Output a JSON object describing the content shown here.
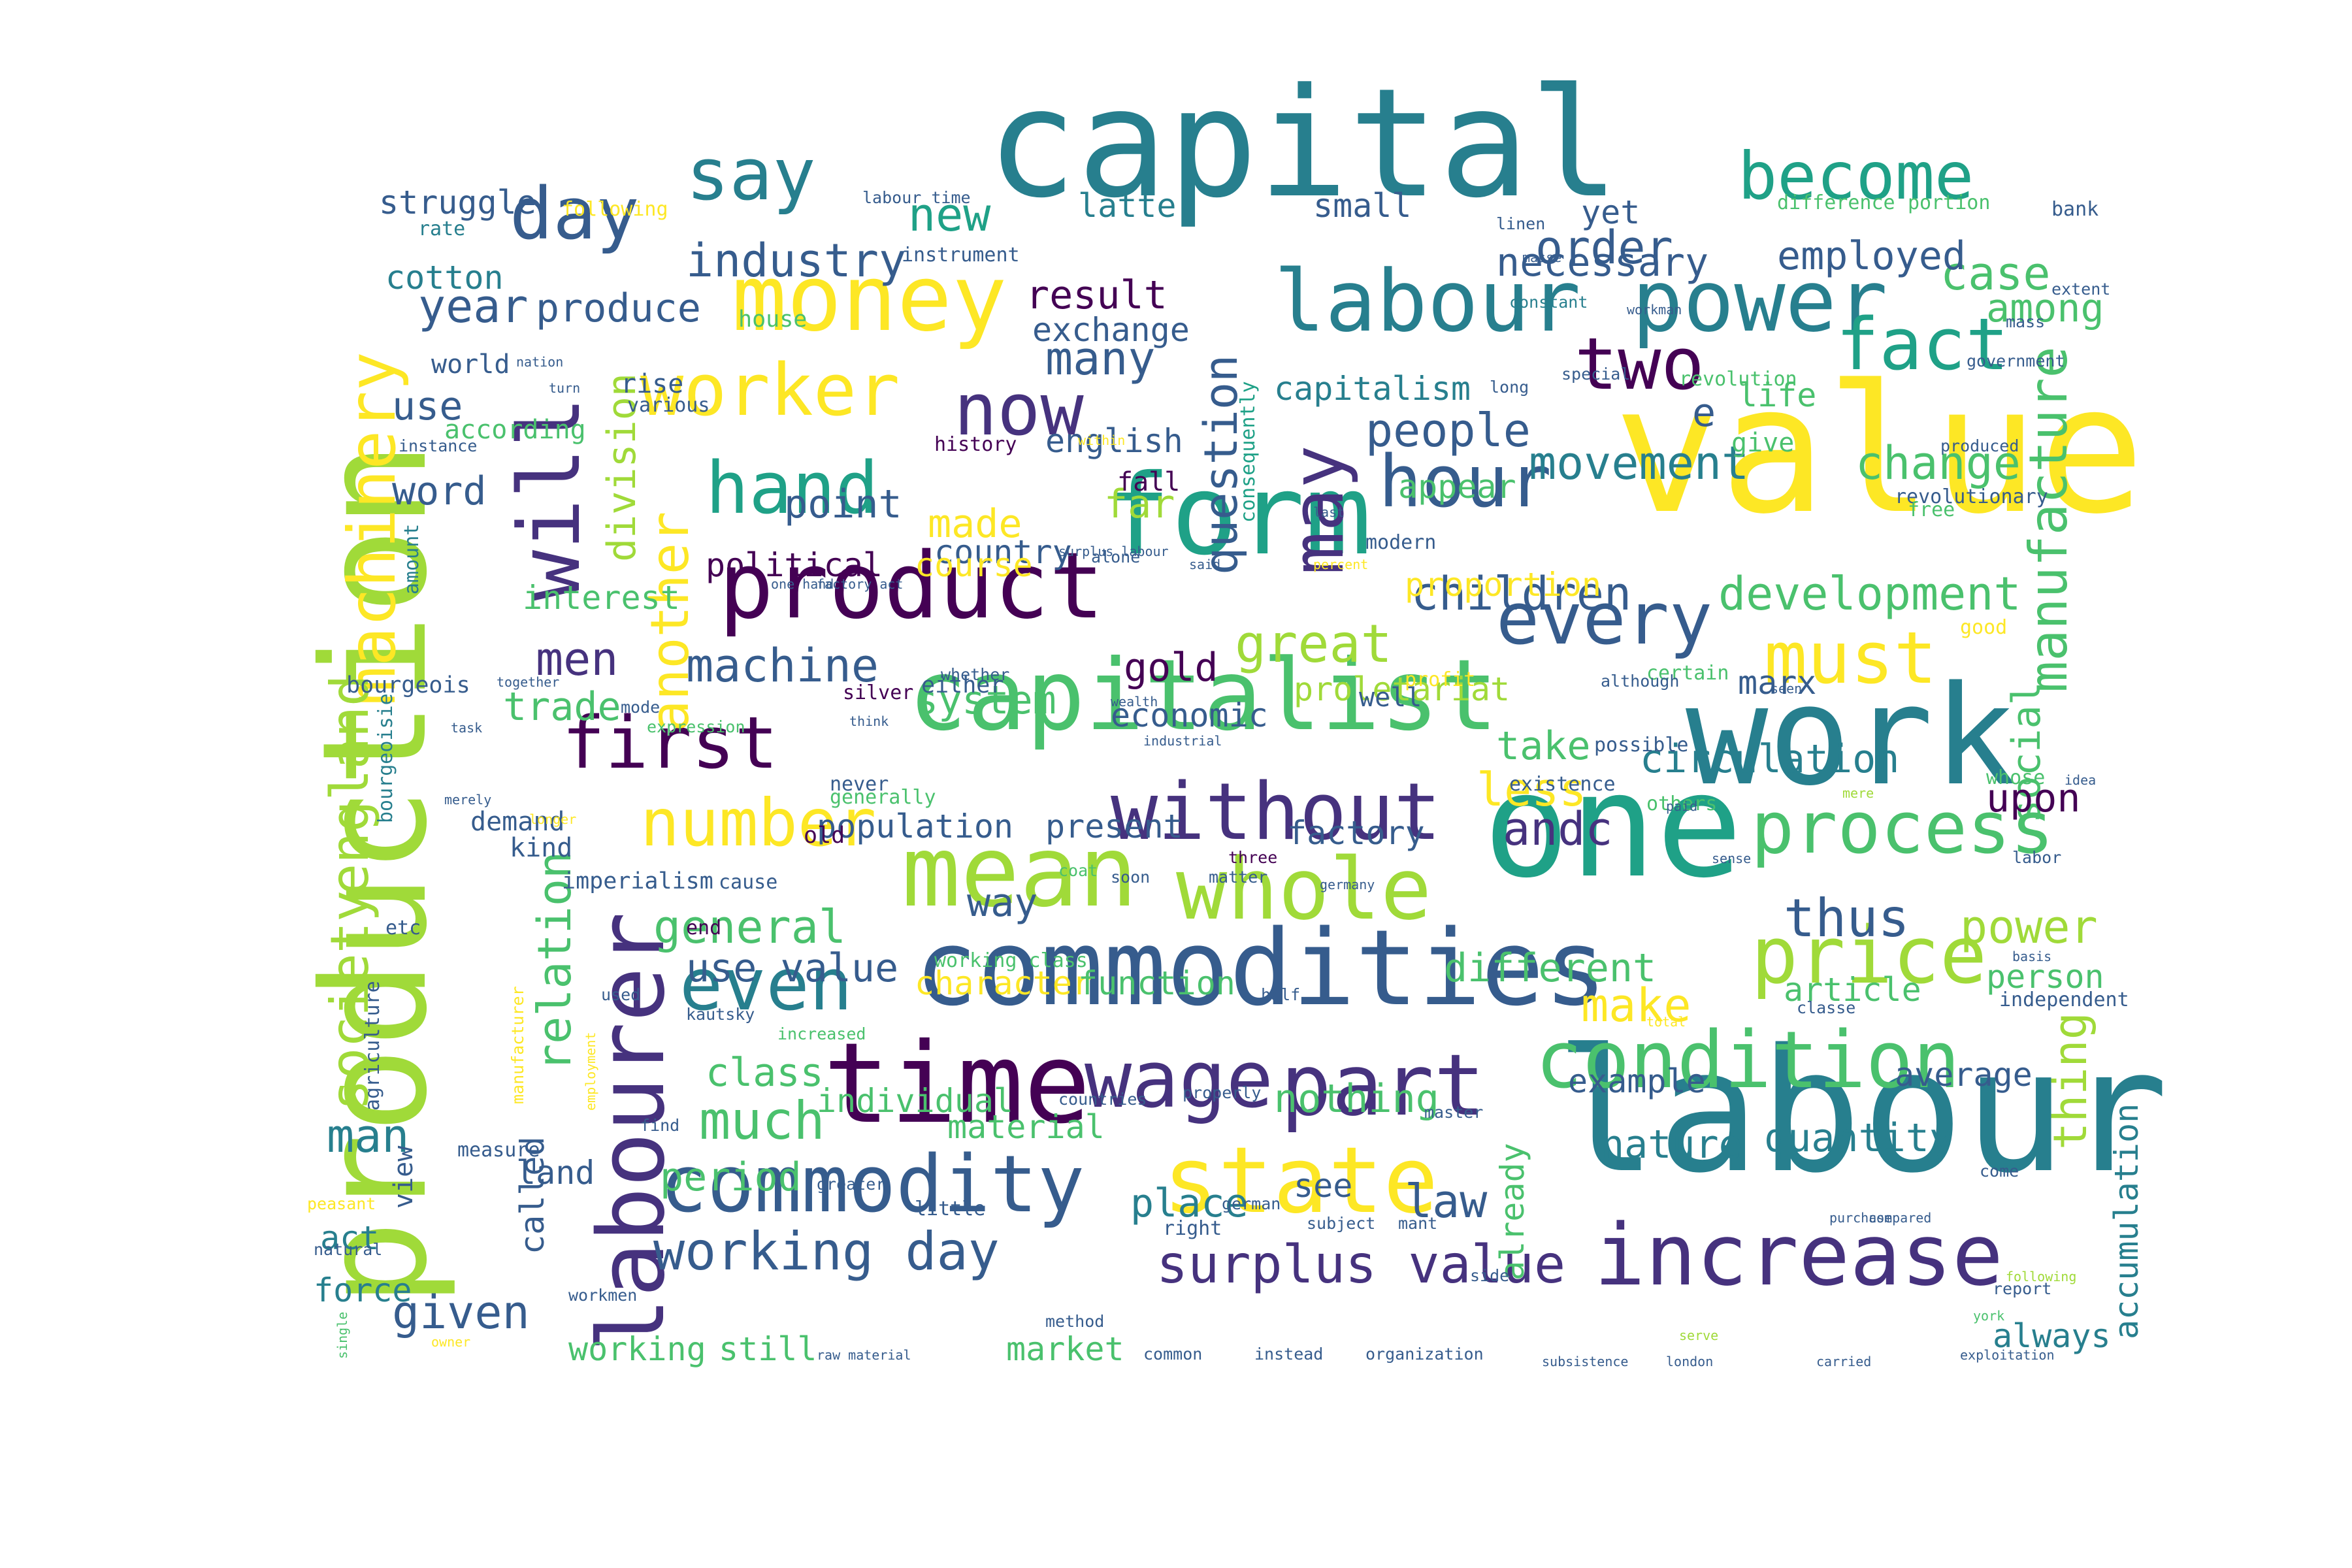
{
  "palette": [
    "#440154",
    "#46327e",
    "#365c8d",
    "#277f8e",
    "#1fa187",
    "#4ac16d",
    "#a0da39",
    "#fde725"
  ],
  "words": [
    {
      "text": "value",
      "color": "#fde725"
    },
    {
      "text": "labour",
      "color": "#277f8e"
    },
    {
      "text": "capital",
      "color": "#277f8e"
    },
    {
      "text": "production",
      "color": "#a0da39"
    },
    {
      "text": "work",
      "color": "#277f8e"
    },
    {
      "text": "one",
      "color": "#1fa187"
    },
    {
      "text": "commodities",
      "color": "#365c8d"
    },
    {
      "text": "capitalist",
      "color": "#4ac16d"
    },
    {
      "text": "mean",
      "color": "#a0da39"
    },
    {
      "text": "form",
      "color": "#1fa187"
    },
    {
      "text": "labourer",
      "color": "#46327e"
    },
    {
      "text": "time",
      "color": "#440154"
    },
    {
      "text": "money",
      "color": "#fde725"
    },
    {
      "text": "product",
      "color": "#440154"
    },
    {
      "text": "state",
      "color": "#fde725"
    },
    {
      "text": "commodity",
      "color": "#365c8d"
    },
    {
      "text": "increase",
      "color": "#46327e"
    },
    {
      "text": "labour power",
      "color": "#277f8e"
    },
    {
      "text": "condition",
      "color": "#4ac16d"
    },
    {
      "text": "price",
      "color": "#a0da39"
    },
    {
      "text": "whole",
      "color": "#a0da39"
    },
    {
      "text": "part",
      "color": "#46327e"
    },
    {
      "text": "wage",
      "color": "#46327e"
    },
    {
      "text": "without",
      "color": "#46327e"
    },
    {
      "text": "process",
      "color": "#4ac16d"
    },
    {
      "text": "will",
      "color": "#46327e"
    },
    {
      "text": "machinery",
      "color": "#fde725"
    },
    {
      "text": "may",
      "color": "#46327e"
    },
    {
      "text": "worker",
      "color": "#fde725"
    },
    {
      "text": "hand",
      "color": "#1fa187"
    },
    {
      "text": "even",
      "color": "#277f8e"
    },
    {
      "text": "must",
      "color": "#fde725"
    },
    {
      "text": "every",
      "color": "#365c8d"
    },
    {
      "text": "hour",
      "color": "#365c8d"
    },
    {
      "text": "first",
      "color": "#440154"
    },
    {
      "text": "now",
      "color": "#46327e"
    },
    {
      "text": "say",
      "color": "#277f8e"
    },
    {
      "text": "fact",
      "color": "#1fa187"
    },
    {
      "text": "become",
      "color": "#1fa187"
    },
    {
      "text": "day",
      "color": "#365c8d"
    },
    {
      "text": "number",
      "color": "#fde725"
    },
    {
      "text": "two",
      "color": "#440154"
    },
    {
      "text": "surplus value",
      "color": "#46327e"
    },
    {
      "text": "working day",
      "color": "#365c8d"
    },
    {
      "text": "manufacture",
      "color": "#4ac16d"
    },
    {
      "text": "society",
      "color": "#a0da39"
    },
    {
      "text": "england",
      "color": "#a0da39"
    },
    {
      "text": "question",
      "color": "#365c8d"
    },
    {
      "text": "development",
      "color": "#4ac16d"
    },
    {
      "text": "children",
      "color": "#365c8d"
    },
    {
      "text": "industry",
      "color": "#365c8d"
    },
    {
      "text": "machine",
      "color": "#365c8d"
    },
    {
      "text": "great",
      "color": "#a0da39"
    },
    {
      "text": "people",
      "color": "#365c8d"
    },
    {
      "text": "movement",
      "color": "#277f8e"
    },
    {
      "text": "change",
      "color": "#4ac16d"
    },
    {
      "text": "case",
      "color": "#4ac16d"
    },
    {
      "text": "made",
      "color": "#fde725"
    },
    {
      "text": "many",
      "color": "#365c8d"
    },
    {
      "text": "another",
      "color": "#fde725"
    },
    {
      "text": "given",
      "color": "#365c8d"
    },
    {
      "text": "much",
      "color": "#4ac16d"
    },
    {
      "text": "andc",
      "color": "#46327e"
    },
    {
      "text": "thus",
      "color": "#365c8d"
    },
    {
      "text": "power",
      "color": "#a0da39"
    },
    {
      "text": "relation",
      "color": "#4ac16d"
    },
    {
      "text": "general",
      "color": "#4ac16d"
    },
    {
      "text": "thing",
      "color": "#a0da39"
    },
    {
      "text": "make",
      "color": "#fde725"
    },
    {
      "text": "different",
      "color": "#4ac16d"
    },
    {
      "text": "law",
      "color": "#365c8d"
    },
    {
      "text": "class",
      "color": "#4ac16d"
    },
    {
      "text": "man",
      "color": "#277f8e"
    },
    {
      "text": "new",
      "color": "#1fa187"
    },
    {
      "text": "way",
      "color": "#365c8d"
    },
    {
      "text": "men",
      "color": "#46327e"
    },
    {
      "text": "less",
      "color": "#fde725"
    },
    {
      "text": "social",
      "color": "#4ac16d"
    },
    {
      "text": "order",
      "color": "#365c8d"
    },
    {
      "text": "gold",
      "color": "#440154"
    },
    {
      "text": "year",
      "color": "#365c8d"
    },
    {
      "text": "circulation",
      "color": "#277f8e"
    },
    {
      "text": "upon",
      "color": "#440154"
    },
    {
      "text": "take",
      "color": "#4ac16d"
    },
    {
      "text": "quantity",
      "color": "#277f8e"
    },
    {
      "text": "period",
      "color": "#4ac16d"
    },
    {
      "text": "point",
      "color": "#365c8d"
    },
    {
      "text": "use value",
      "color": "#365c8d"
    },
    {
      "text": "trade",
      "color": "#4ac16d"
    },
    {
      "text": "necessary",
      "color": "#365c8d"
    },
    {
      "text": "employed",
      "color": "#365c8d"
    },
    {
      "text": "among",
      "color": "#4ac16d"
    },
    {
      "text": "system",
      "color": "#4ac16d"
    },
    {
      "text": "political",
      "color": "#440154"
    },
    {
      "text": "division",
      "color": "#a0da39"
    },
    {
      "text": "place",
      "color": "#277f8e"
    },
    {
      "text": "nature",
      "color": "#277f8e"
    },
    {
      "text": "produce",
      "color": "#365c8d"
    },
    {
      "text": "result",
      "color": "#440154"
    },
    {
      "text": "far",
      "color": "#a0da39"
    },
    {
      "text": "country",
      "color": "#365c8d"
    },
    {
      "text": "course",
      "color": "#fde725"
    },
    {
      "text": "interest",
      "color": "#4ac16d"
    },
    {
      "text": "character",
      "color": "#fde725"
    },
    {
      "text": "function",
      "color": "#4ac16d"
    },
    {
      "text": "proletariat",
      "color": "#a0da39"
    },
    {
      "text": "word",
      "color": "#365c8d"
    },
    {
      "text": "use",
      "color": "#365c8d"
    },
    {
      "text": "exchange",
      "color": "#365c8d"
    },
    {
      "text": "capitalism",
      "color": "#277f8e"
    },
    {
      "text": "struggle",
      "color": "#365c8d"
    },
    {
      "text": "cotton",
      "color": "#277f8e"
    },
    {
      "text": "still",
      "color": "#4ac16d"
    },
    {
      "text": "market",
      "color": "#4ac16d"
    },
    {
      "text": "latter",
      "color": "#277f8e"
    },
    {
      "text": "accumulation",
      "color": "#277f8e"
    },
    {
      "text": "always",
      "color": "#277f8e"
    },
    {
      "text": "article",
      "color": "#4ac16d"
    },
    {
      "text": "person",
      "color": "#4ac16d"
    },
    {
      "text": "average",
      "color": "#365c8d"
    },
    {
      "text": "individual",
      "color": "#4ac16d"
    },
    {
      "text": "material",
      "color": "#4ac16d"
    },
    {
      "text": "nothing",
      "color": "#4ac16d"
    },
    {
      "text": "see",
      "color": "#365c8d"
    },
    {
      "text": "land",
      "color": "#365c8d"
    },
    {
      "text": "act",
      "color": "#277f8e"
    },
    {
      "text": "force",
      "color": "#277f8e"
    },
    {
      "text": "factory",
      "color": "#365c8d"
    },
    {
      "text": "population",
      "color": "#365c8d"
    },
    {
      "text": "present",
      "color": "#365c8d"
    },
    {
      "text": "economic",
      "color": "#365c8d"
    },
    {
      "text": "english",
      "color": "#365c8d"
    },
    {
      "text": "small",
      "color": "#365c8d"
    },
    {
      "text": "yet",
      "color": "#365c8d"
    },
    {
      "text": "life",
      "color": "#4ac16d"
    },
    {
      "text": "e",
      "color": "#365c8d"
    },
    {
      "text": "appear",
      "color": "#4ac16d"
    },
    {
      "text": "proportion",
      "color": "#fde725"
    },
    {
      "text": "example",
      "color": "#365c8d"
    },
    {
      "text": "working",
      "color": "#4ac16d"
    },
    {
      "text": "called",
      "color": "#365c8d"
    },
    {
      "text": "marx",
      "color": "#365c8d"
    },
    {
      "text": "already",
      "color": "#4ac16d"
    },
    {
      "text": "history",
      "color": "#440154"
    },
    {
      "text": "consequently",
      "color": "#1fa187"
    },
    {
      "text": "give",
      "color": "#4ac16d"
    },
    {
      "text": "fall",
      "color": "#440154"
    },
    {
      "text": "world",
      "color": "#365c8d"
    },
    {
      "text": "according",
      "color": "#4ac16d"
    },
    {
      "text": "rise",
      "color": "#365c8d"
    },
    {
      "text": "modern",
      "color": "#365c8d"
    },
    {
      "text": "various",
      "color": "#365c8d"
    },
    {
      "text": "demand",
      "color": "#365c8d"
    },
    {
      "text": "kind",
      "color": "#365c8d"
    },
    {
      "text": "bourgeois",
      "color": "#365c8d"
    },
    {
      "text": "bourgeoisie",
      "color": "#277f8e"
    },
    {
      "text": "imperialism",
      "color": "#365c8d"
    },
    {
      "text": "cause",
      "color": "#365c8d"
    },
    {
      "text": "generally",
      "color": "#4ac16d"
    },
    {
      "text": "never",
      "color": "#365c8d"
    },
    {
      "text": "either",
      "color": "#365c8d"
    },
    {
      "text": "silver",
      "color": "#440154"
    },
    {
      "text": "certain",
      "color": "#4ac16d"
    },
    {
      "text": "well",
      "color": "#365c8d"
    },
    {
      "text": "possible",
      "color": "#365c8d"
    },
    {
      "text": "existence",
      "color": "#365c8d"
    },
    {
      "text": "others",
      "color": "#4ac16d"
    },
    {
      "text": "old",
      "color": "#440154"
    },
    {
      "text": "end",
      "color": "#440154"
    },
    {
      "text": "working class",
      "color": "#4ac16d"
    },
    {
      "text": "view",
      "color": "#365c8d"
    },
    {
      "text": "amount",
      "color": "#277f8e"
    },
    {
      "text": "etc",
      "color": "#365c8d"
    },
    {
      "text": "bank",
      "color": "#365c8d"
    },
    {
      "text": "difference",
      "color": "#4ac16d"
    },
    {
      "text": "portion",
      "color": "#4ac16d"
    },
    {
      "text": "instrument",
      "color": "#365c8d"
    },
    {
      "text": "house",
      "color": "#4ac16d"
    },
    {
      "text": "rate",
      "color": "#277f8e"
    },
    {
      "text": "following",
      "color": "#fde725"
    },
    {
      "text": "labour time",
      "color": "#365c8d"
    },
    {
      "text": "constant",
      "color": "#277f8e"
    },
    {
      "text": "special",
      "color": "#365c8d"
    },
    {
      "text": "long",
      "color": "#365c8d"
    },
    {
      "text": "revolution",
      "color": "#4ac16d"
    },
    {
      "text": "instance",
      "color": "#365c8d"
    },
    {
      "text": "alone",
      "color": "#365c8d"
    },
    {
      "text": "within",
      "color": "#fde725"
    },
    {
      "text": "percent",
      "color": "#fde725"
    },
    {
      "text": "last",
      "color": "#365c8d"
    },
    {
      "text": "revolutionary",
      "color": "#365c8d"
    },
    {
      "text": "produced",
      "color": "#365c8d"
    },
    {
      "text": "government",
      "color": "#365c8d"
    },
    {
      "text": "free",
      "color": "#4ac16d"
    },
    {
      "text": "good",
      "color": "#fde725"
    },
    {
      "text": "profit",
      "color": "#fde725"
    },
    {
      "text": "although",
      "color": "#365c8d"
    },
    {
      "text": "whose",
      "color": "#4ac16d"
    },
    {
      "text": "three",
      "color": "#440154"
    },
    {
      "text": "coat",
      "color": "#4ac16d"
    },
    {
      "text": "soon",
      "color": "#365c8d"
    },
    {
      "text": "matter",
      "color": "#365c8d"
    },
    {
      "text": "germany",
      "color": "#365c8d"
    },
    {
      "text": "total",
      "color": "#fde725"
    },
    {
      "text": "classe",
      "color": "#365c8d"
    },
    {
      "text": "independent",
      "color": "#365c8d"
    },
    {
      "text": "half",
      "color": "#365c8d"
    },
    {
      "text": "increased",
      "color": "#4ac16d"
    },
    {
      "text": "kautsky",
      "color": "#365c8d"
    },
    {
      "text": "properly",
      "color": "#365c8d"
    },
    {
      "text": "countries",
      "color": "#365c8d"
    },
    {
      "text": "master",
      "color": "#365c8d"
    },
    {
      "text": "find",
      "color": "#365c8d"
    },
    {
      "text": "measure",
      "color": "#365c8d"
    },
    {
      "text": "agriculture",
      "color": "#365c8d"
    },
    {
      "text": "manufacturer",
      "color": "#fde725"
    },
    {
      "text": "employment",
      "color": "#fde725"
    },
    {
      "text": "used",
      "color": "#365c8d"
    },
    {
      "text": "peasant",
      "color": "#fde725"
    },
    {
      "text": "natural",
      "color": "#365c8d"
    },
    {
      "text": "workmen",
      "color": "#365c8d"
    },
    {
      "text": "little",
      "color": "#365c8d"
    },
    {
      "text": "german",
      "color": "#365c8d"
    },
    {
      "text": "right",
      "color": "#365c8d"
    },
    {
      "text": "subject",
      "color": "#365c8d"
    },
    {
      "text": "side",
      "color": "#365c8d"
    },
    {
      "text": "method",
      "color": "#365c8d"
    },
    {
      "text": "common",
      "color": "#365c8d"
    },
    {
      "text": "instead",
      "color": "#365c8d"
    },
    {
      "text": "organization",
      "color": "#365c8d"
    },
    {
      "text": "subsistence",
      "color": "#365c8d"
    },
    {
      "text": "carried",
      "color": "#365c8d"
    },
    {
      "text": "exploitation",
      "color": "#365c8d"
    },
    {
      "text": "raw material",
      "color": "#365c8d"
    },
    {
      "text": "greater",
      "color": "#365c8d"
    },
    {
      "text": "report",
      "color": "#365c8d"
    },
    {
      "text": "come",
      "color": "#365c8d"
    },
    {
      "text": "labor",
      "color": "#365c8d"
    },
    {
      "text": "extent",
      "color": "#365c8d"
    },
    {
      "text": "mass",
      "color": "#365c8d"
    },
    {
      "text": "linen",
      "color": "#365c8d"
    },
    {
      "text": "masse",
      "color": "#365c8d"
    },
    {
      "text": "workman",
      "color": "#365c8d"
    },
    {
      "text": "whether",
      "color": "#365c8d"
    },
    {
      "text": "mode",
      "color": "#365c8d"
    },
    {
      "text": "together",
      "color": "#365c8d"
    },
    {
      "text": "turn",
      "color": "#365c8d"
    },
    {
      "text": "nation",
      "color": "#365c8d"
    },
    {
      "text": "surplus labour",
      "color": "#365c8d"
    },
    {
      "text": "one hand",
      "color": "#365c8d"
    },
    {
      "text": "factory act",
      "color": "#365c8d"
    },
    {
      "text": "wealth",
      "color": "#365c8d"
    },
    {
      "text": "industrial",
      "color": "#365c8d"
    },
    {
      "text": "expression",
      "color": "#4ac16d"
    },
    {
      "text": "task",
      "color": "#365c8d"
    },
    {
      "text": "longer",
      "color": "#fde725"
    },
    {
      "text": "merely",
      "color": "#365c8d"
    },
    {
      "text": "mant",
      "color": "#365c8d"
    },
    {
      "text": "idea",
      "color": "#365c8d"
    },
    {
      "text": "single",
      "color": "#4ac16d"
    },
    {
      "text": "owner",
      "color": "#fde725"
    },
    {
      "text": "following",
      "color": "#a0da39"
    },
    {
      "text": "york",
      "color": "#4ac16d"
    },
    {
      "text": "said",
      "color": "#365c8d"
    },
    {
      "text": "london",
      "color": "#365c8d"
    },
    {
      "text": "serve",
      "color": "#a0da39"
    },
    {
      "text": "paid",
      "color": "#365c8d"
    },
    {
      "text": "sense",
      "color": "#365c8d"
    },
    {
      "text": "basis",
      "color": "#365c8d"
    },
    {
      "text": "mere",
      "color": "#a0da39"
    },
    {
      "text": "think",
      "color": "#365c8d"
    },
    {
      "text": "seen",
      "color": "#365c8d"
    },
    {
      "text": "purchase",
      "color": "#365c8d"
    },
    {
      "text": "compared",
      "color": "#365c8d"
    }
  ]
}
